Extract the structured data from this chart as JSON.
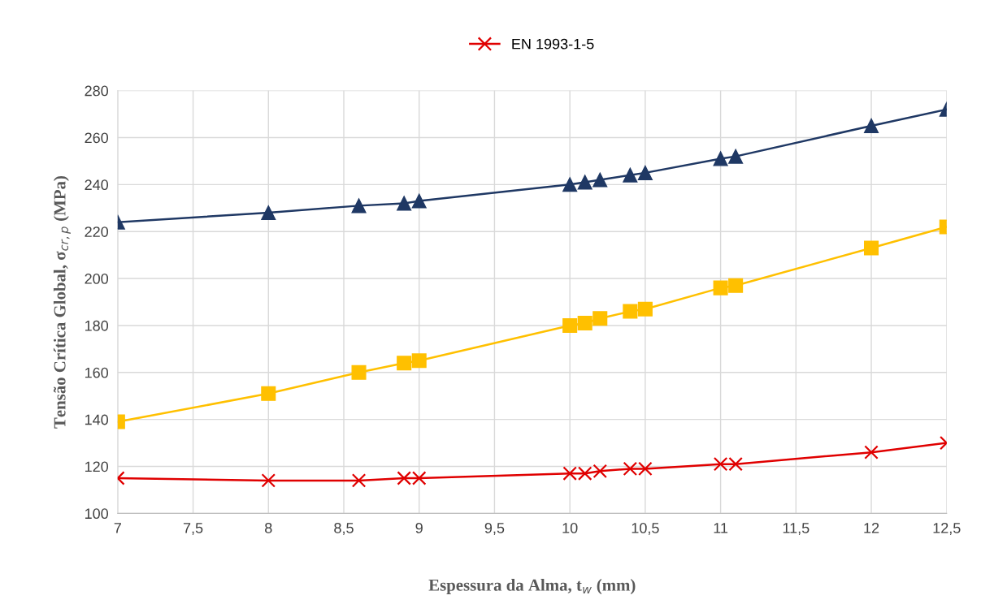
{
  "chart_data": {
    "type": "line",
    "xlabel": "Espessura da Alma, t$_{w}$ (mm)",
    "ylabel": "Tensão Crítica Global, σ$_{cr,p}$ (MPa)",
    "x": [
      7,
      8,
      8.6,
      8.9,
      9,
      10,
      10.1,
      10.2,
      10.4,
      10.5,
      11,
      11.1,
      12,
      12.5
    ],
    "series": [
      {
        "color": "#1f3864",
        "marker": "triangle",
        "values": [
          224,
          228,
          231,
          232,
          233,
          240,
          241,
          242,
          244,
          245,
          251,
          252,
          265,
          272
        ]
      },
      {
        "color": "#ffc000",
        "marker": "square",
        "values": [
          139,
          151,
          160,
          164,
          165,
          180,
          181,
          183,
          186,
          187,
          196,
          197,
          213,
          222
        ]
      },
      {
        "name": "EN 1993-1-5",
        "color": "#e00000",
        "marker": "cross",
        "values": [
          115,
          114,
          114,
          115,
          115,
          117,
          117,
          118,
          119,
          119,
          121,
          121,
          126,
          130
        ]
      }
    ],
    "xlim": [
      7,
      12.5
    ],
    "xticks": [
      7,
      {
        "value": 7.5,
        "label": "7,5"
      },
      8,
      {
        "value": 8.5,
        "label": "8,5"
      },
      9,
      {
        "value": 9.5,
        "label": "9,5"
      },
      10,
      {
        "value": 10.5,
        "label": "10,5"
      },
      11,
      {
        "value": 11.5,
        "label": "11,5"
      },
      12,
      {
        "value": 12.5,
        "label": "12,5"
      }
    ],
    "ylim": [
      100,
      280
    ],
    "yticks": [
      100,
      120,
      140,
      160,
      180,
      200,
      220,
      240,
      260,
      280
    ],
    "grid": true,
    "legend": "top",
    "line_style": "solid"
  }
}
